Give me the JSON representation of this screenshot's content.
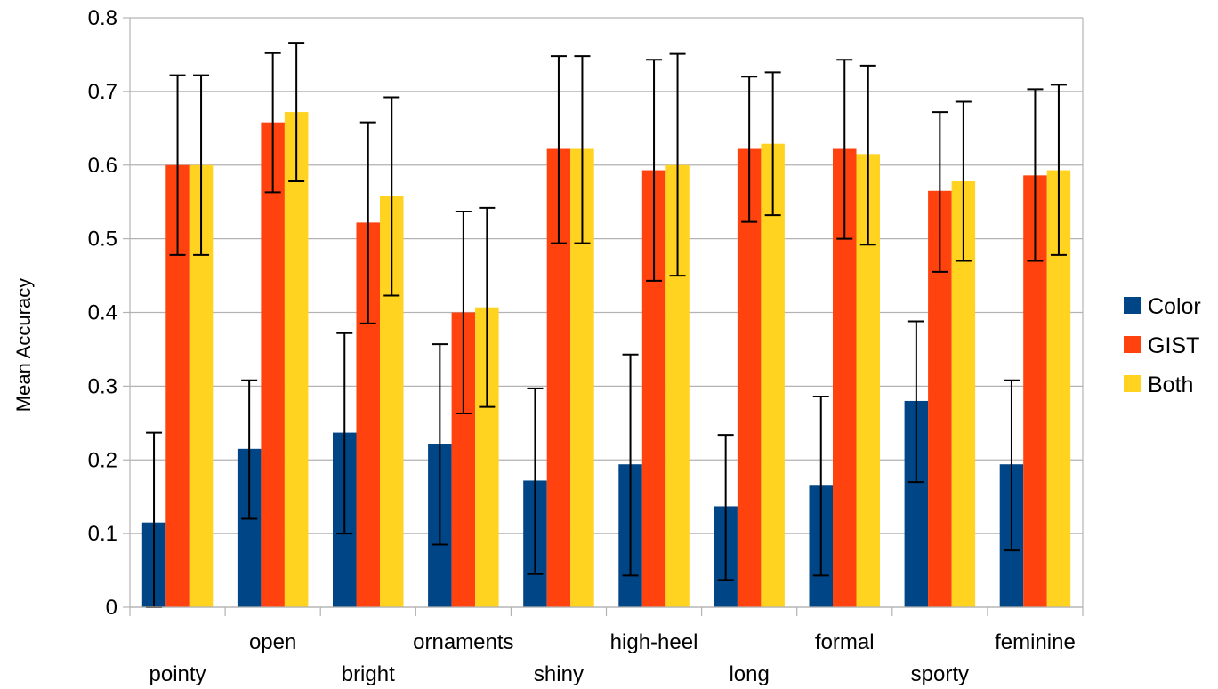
{
  "chart_data": {
    "type": "bar",
    "categories": [
      "pointy",
      "open",
      "bright",
      "ornaments",
      "shiny",
      "high-heel",
      "long",
      "formal",
      "sporty",
      "feminine"
    ],
    "series": [
      {
        "name": "Color",
        "color": "#004586",
        "values": [
          0.115,
          0.215,
          0.237,
          0.222,
          0.172,
          0.194,
          0.137,
          0.165,
          0.28,
          0.194
        ],
        "error_low": [
          0.0,
          0.12,
          0.1,
          0.085,
          0.045,
          0.043,
          0.037,
          0.043,
          0.17,
          0.077
        ],
        "error_high": [
          0.237,
          0.308,
          0.372,
          0.357,
          0.297,
          0.343,
          0.234,
          0.286,
          0.388,
          0.308
        ]
      },
      {
        "name": "GIST",
        "color": "#ff420e",
        "values": [
          0.6,
          0.658,
          0.522,
          0.4,
          0.622,
          0.593,
          0.622,
          0.622,
          0.565,
          0.586
        ],
        "error_low": [
          0.478,
          0.563,
          0.385,
          0.263,
          0.494,
          0.443,
          0.523,
          0.5,
          0.455,
          0.47
        ],
        "error_high": [
          0.722,
          0.752,
          0.658,
          0.537,
          0.748,
          0.743,
          0.72,
          0.743,
          0.672,
          0.703
        ]
      },
      {
        "name": "Both",
        "color": "#ffd320",
        "values": [
          0.6,
          0.672,
          0.558,
          0.407,
          0.622,
          0.6,
          0.629,
          0.615,
          0.578,
          0.593
        ],
        "error_low": [
          0.478,
          0.578,
          0.423,
          0.272,
          0.494,
          0.45,
          0.532,
          0.492,
          0.47,
          0.478
        ],
        "error_high": [
          0.722,
          0.766,
          0.692,
          0.542,
          0.748,
          0.751,
          0.726,
          0.735,
          0.686,
          0.709
        ]
      }
    ],
    "title": "",
    "xlabel": "",
    "ylabel": "Mean Accuracy",
    "ylim": [
      0,
      0.8
    ],
    "yticks": [
      "0",
      "0.1",
      "0.2",
      "0.3",
      "0.4",
      "0.5",
      "0.6",
      "0.7",
      "0.8"
    ],
    "grid": true,
    "legend": "right",
    "error_bars": true
  }
}
